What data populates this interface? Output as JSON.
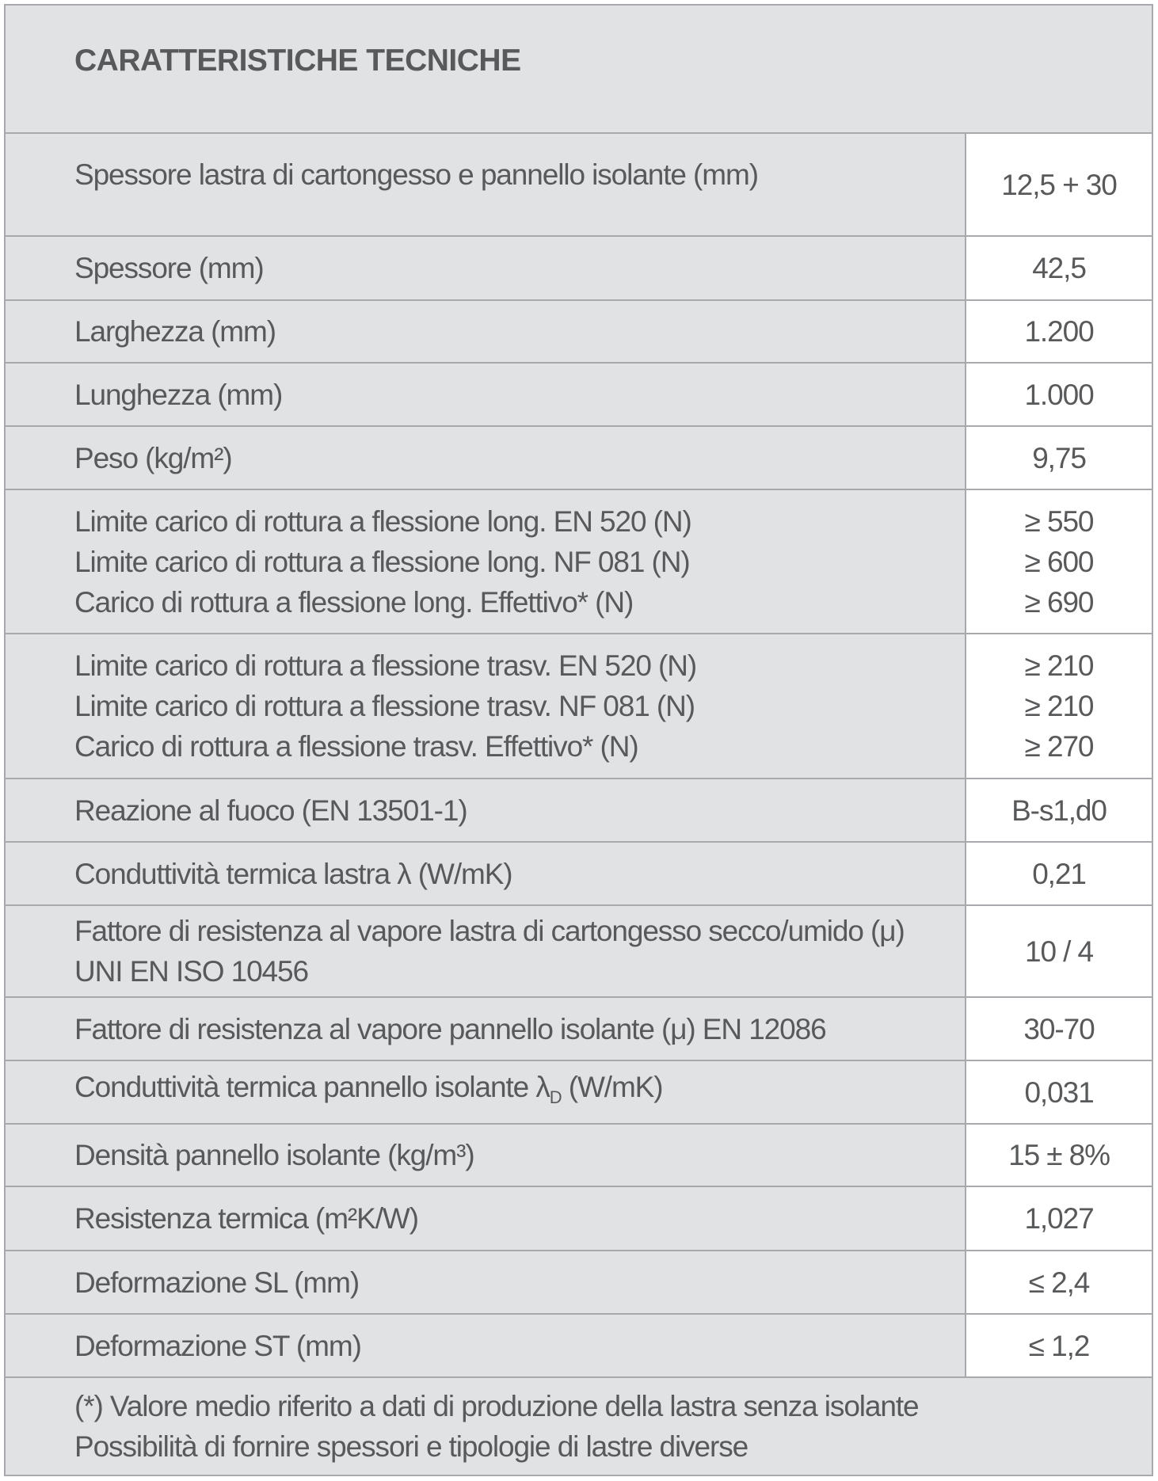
{
  "title": "CARATTERISTICHE TECNICHE",
  "rows": [
    {
      "label": [
        "Spessore lastra di cartongesso e pannello isolante (mm)"
      ],
      "value": [
        "12,5 + 30"
      ]
    },
    {
      "label": [
        "Spessore (mm)"
      ],
      "value": [
        "42,5"
      ]
    },
    {
      "label": [
        "Larghezza (mm)"
      ],
      "value": [
        "1.200"
      ]
    },
    {
      "label": [
        "Lunghezza (mm)"
      ],
      "value": [
        "1.000"
      ]
    },
    {
      "label": [
        "Peso (kg/m²)"
      ],
      "value": [
        "9,75"
      ]
    },
    {
      "label": [
        "Limite carico di rottura a flessione long. EN 520 (N)",
        "Limite carico di rottura a flessione long. NF 081 (N)",
        "Carico di rottura a flessione long. Effettivo* (N)"
      ],
      "value": [
        "≥ 550",
        "≥ 600",
        "≥ 690"
      ]
    },
    {
      "label": [
        "Limite carico di rottura a flessione trasv. EN 520 (N)",
        "Limite carico di rottura a flessione trasv. NF 081 (N)",
        "Carico di rottura a flessione trasv. Effettivo* (N)"
      ],
      "value": [
        "≥ 210",
        "≥ 210",
        "≥ 270"
      ]
    },
    {
      "label": [
        "Reazione al fuoco (EN 13501-1)"
      ],
      "value": [
        "B-s1,d0"
      ]
    },
    {
      "label": [
        "Conduttività termica lastra λ (W/mK)"
      ],
      "value": [
        "0,21"
      ]
    },
    {
      "label": [
        "Fattore di resistenza al vapore lastra di cartongesso secco/umido (μ)",
        "UNI EN ISO 10456"
      ],
      "value": [
        "10 / 4"
      ]
    },
    {
      "label": [
        "Fattore di resistenza al vapore pannello isolante (μ) EN 12086"
      ],
      "value": [
        "30-70"
      ]
    },
    {
      "label": [
        "Conduttività termica pannello isolante λ"
      ],
      "label_sub": "D",
      "label_after": " (W/mK)",
      "value": [
        "0,031"
      ]
    },
    {
      "label": [
        "Densità pannello isolante (kg/m³)"
      ],
      "value": [
        "15 ± 8%"
      ]
    },
    {
      "label": [
        "Resistenza termica (m²K/W)"
      ],
      "value": [
        "1,027"
      ]
    },
    {
      "label": [
        "Deformazione SL (mm)"
      ],
      "value": [
        "≤ 2,4"
      ]
    },
    {
      "label": [
        "Deformazione ST (mm)"
      ],
      "value": [
        "≤ 1,2"
      ]
    }
  ],
  "footer": [
    "(*) Valore medio riferito a dati di produzione della lastra senza isolante",
    "Possibilità di fornire spessori e tipologie di lastre diverse"
  ]
}
